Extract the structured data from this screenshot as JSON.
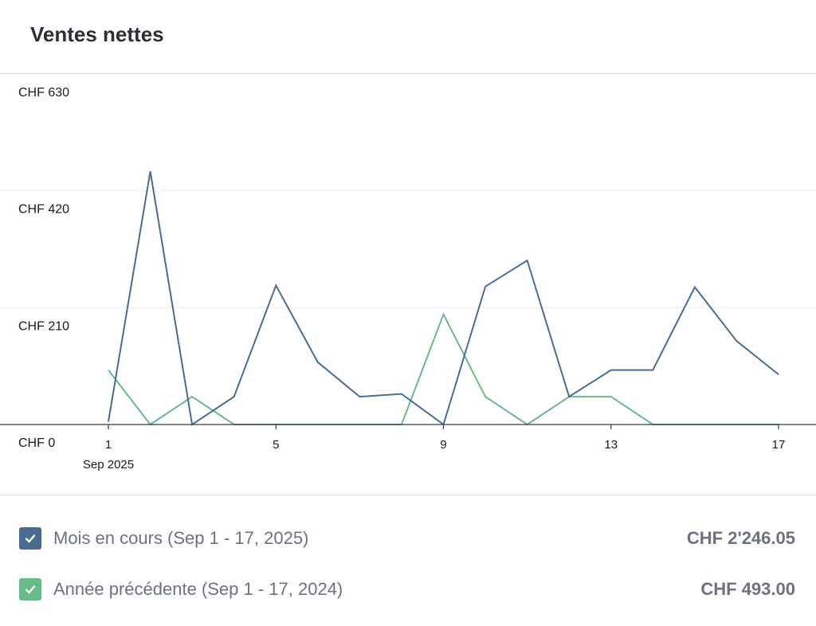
{
  "card": {
    "title": "Ventes nettes"
  },
  "chart_data": {
    "type": "line",
    "x": [
      1,
      2,
      3,
      4,
      5,
      6,
      7,
      8,
      9,
      10,
      11,
      12,
      13,
      14,
      15,
      16,
      17
    ],
    "x_tick_labels": [
      "1",
      "5",
      "9",
      "13",
      "17"
    ],
    "x_tick_values": [
      1,
      5,
      9,
      13,
      17
    ],
    "x_sublabel": "Sep 2025",
    "y_tick_labels": [
      "CHF 0",
      "CHF 210",
      "CHF 420",
      "CHF 630"
    ],
    "y_tick_values": [
      0,
      210,
      420,
      630
    ],
    "ylim": [
      0,
      630
    ],
    "grid": true,
    "series": [
      {
        "name": "Mois en cours (Sep 1 - 17, 2025)",
        "color": "#486d91",
        "values": [
          5,
          455,
          0,
          50,
          250,
          112,
          50,
          55,
          0,
          248,
          295,
          50,
          98,
          98,
          247,
          150,
          90
        ]
      },
      {
        "name": "Année précédente (Sep 1 - 17, 2024)",
        "color": "#66bb86",
        "values": [
          98,
          0,
          50,
          0,
          0,
          0,
          0,
          0,
          198,
          50,
          0,
          50,
          50,
          0,
          0,
          0,
          0
        ]
      }
    ]
  },
  "legend": [
    {
      "label": "Mois en cours (Sep 1 - 17, 2025)",
      "total": "CHF 2'246.05",
      "color": "#486d91",
      "checked": true
    },
    {
      "label": "Année précédente (Sep 1 - 17, 2024)",
      "total": "CHF 493.00",
      "color": "#66bb86",
      "checked": true
    }
  ]
}
